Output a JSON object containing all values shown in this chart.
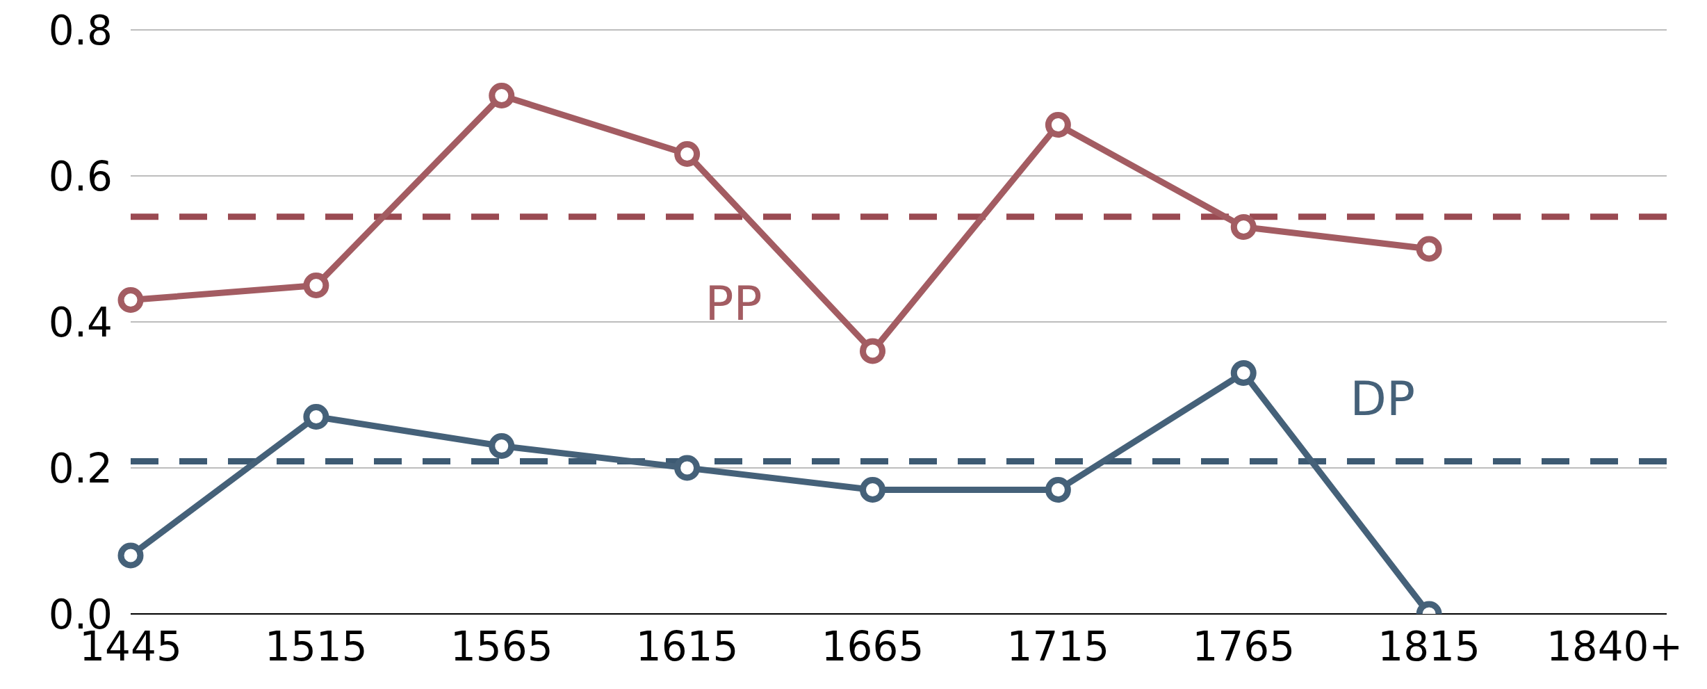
{
  "chart_data": {
    "type": "line",
    "categories": [
      "1445",
      "1515",
      "1565",
      "1615",
      "1665",
      "1715",
      "1765",
      "1815",
      "1840+"
    ],
    "series": [
      {
        "name": "PP",
        "color": "#a35c62",
        "values": [
          0.43,
          0.45,
          0.71,
          0.63,
          0.36,
          0.67,
          0.53,
          0.5,
          null
        ]
      },
      {
        "name": "DP",
        "color": "#456179",
        "values": [
          0.08,
          0.27,
          0.23,
          0.2,
          0.17,
          0.17,
          0.33,
          0.0,
          null
        ]
      }
    ],
    "ylim": [
      0,
      0.8
    ],
    "yticks": [
      {
        "value": 0,
        "label": "0.0"
      },
      0.2,
      0.4,
      0.6,
      0.8
    ],
    "ref_lines": [
      {
        "axis": "y",
        "value": 0.544,
        "color": "#9a4a52",
        "line_style": "dashed"
      },
      {
        "axis": "y",
        "value": 0.209,
        "color": "#3d5a73",
        "line_style": "dashed"
      }
    ],
    "grid": "y",
    "marker": "circle",
    "line_style": "solid"
  }
}
